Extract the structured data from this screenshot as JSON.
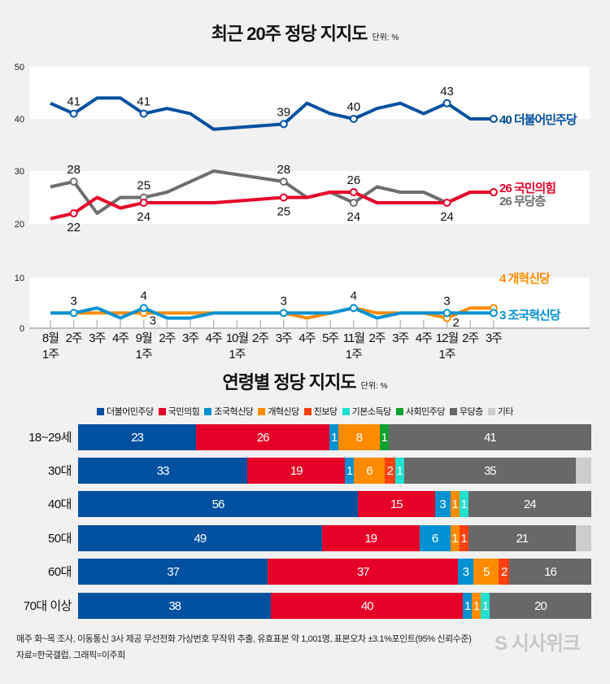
{
  "chart_data": [
    {
      "type": "line",
      "title": "최근 20주 정당 지지도",
      "unit": "단위: %",
      "x_labels": [
        [
          "8월",
          "1주"
        ],
        [
          "2주",
          ""
        ],
        [
          "3주",
          ""
        ],
        [
          "4주",
          ""
        ],
        [
          "9월",
          "1주"
        ],
        [
          "2주",
          ""
        ],
        [
          "3주",
          ""
        ],
        [
          "4주",
          ""
        ],
        [
          "10월",
          "1주"
        ],
        [
          "2주",
          ""
        ],
        [
          "3주",
          ""
        ],
        [
          "4주",
          ""
        ],
        [
          "5주",
          ""
        ],
        [
          "11월",
          "1주"
        ],
        [
          "2주",
          ""
        ],
        [
          "3주",
          ""
        ],
        [
          "4주",
          ""
        ],
        [
          "12월",
          "1주"
        ],
        [
          "2주",
          ""
        ],
        [
          "3주",
          ""
        ]
      ],
      "y_ticks": [
        50,
        40,
        30,
        20,
        10,
        0
      ],
      "grid": false,
      "series": [
        {
          "name": "더불어민주당",
          "color": "#0050a0",
          "panel": "top",
          "end_label": "40 더불어민주당",
          "values": [
            43,
            41,
            44,
            44,
            41,
            42,
            41,
            38,
            null,
            null,
            39,
            43,
            41,
            40,
            42,
            43,
            41,
            43,
            40,
            40
          ],
          "labeled": {
            "1": "41",
            "4": "41",
            "10": "39",
            "13": "40",
            "17": "43"
          },
          "label_pos": "above"
        },
        {
          "name": "국민의힘",
          "color": "#e60028",
          "panel": "mid",
          "end_label": "26 국민의힘",
          "values": [
            21,
            22,
            25,
            23,
            24,
            24,
            24,
            24,
            null,
            null,
            25,
            25,
            26,
            26,
            24,
            24,
            24,
            24,
            26,
            26
          ],
          "labeled": {
            "1": "22",
            "4": "24",
            "10": "25",
            "13": "26",
            "17": "24"
          },
          "label_pos": {
            "1": "below",
            "4": "below",
            "10": "below",
            "13": "above",
            "17": "below"
          }
        },
        {
          "name": "무당층",
          "color": "#6e6e6e",
          "panel": "mid",
          "end_label": "26 무당층",
          "values": [
            27,
            28,
            22,
            25,
            25,
            26,
            28,
            30,
            null,
            null,
            28,
            25,
            26,
            24,
            27,
            26,
            26,
            24,
            26,
            26
          ],
          "labeled": {
            "1": "28",
            "4": "25",
            "10": "28",
            "13": "24"
          },
          "label_pos": {
            "1": "above",
            "4": "above",
            "10": "above",
            "13": "below"
          }
        },
        {
          "name": "개혁신당",
          "color": "#ff8c00",
          "panel": "low",
          "end_label": "4 개혁신당",
          "values": [
            3,
            3,
            3,
            3,
            3,
            3,
            3,
            3,
            null,
            null,
            3,
            2,
            3,
            4,
            3,
            3,
            3,
            2,
            4,
            4
          ],
          "labeled": {
            "4": "3",
            "17": "2"
          },
          "label_pos": "below"
        },
        {
          "name": "조국혁신당",
          "color": "#0091d2",
          "panel": "low",
          "end_label": "3 조국혁신당",
          "values": [
            3,
            3,
            4,
            2,
            4,
            2,
            2,
            3,
            null,
            null,
            3,
            3,
            3,
            4,
            2,
            3,
            3,
            3,
            3,
            3
          ],
          "labeled": {
            "1": "3",
            "4": "4",
            "10": "3",
            "13": "4",
            "17": "3"
          },
          "label_pos": "above"
        }
      ]
    },
    {
      "type": "bar",
      "stacked": true,
      "orientation": "horizontal",
      "title": "연령별 정당 지지도",
      "unit": "단위: %",
      "categories": [
        "18~29세",
        "30대",
        "40대",
        "50대",
        "60대",
        "70대 이상"
      ],
      "legend": "top",
      "series": [
        {
          "name": "더불어민주당",
          "color": "#0050a0",
          "values": [
            23,
            33,
            56,
            49,
            37,
            38
          ]
        },
        {
          "name": "국민의힘",
          "color": "#e60028",
          "values": [
            26,
            19,
            15,
            19,
            37,
            40
          ]
        },
        {
          "name": "조국혁신당",
          "color": "#0091d2",
          "values": [
            1,
            1,
            3,
            6,
            3,
            1
          ]
        },
        {
          "name": "개혁신당",
          "color": "#ff8c00",
          "values": [
            8,
            6,
            1,
            1,
            5,
            1
          ]
        },
        {
          "name": "진보당",
          "color": "#ff4010",
          "values": [
            0,
            2,
            0,
            1,
            2,
            0
          ]
        },
        {
          "name": "기본소득당",
          "color": "#20e0d0",
          "values": [
            0,
            1,
            1,
            0,
            0,
            1
          ]
        },
        {
          "name": "사회민주당",
          "color": "#10a030",
          "values": [
            1,
            0,
            0,
            0,
            0,
            0
          ]
        },
        {
          "name": "무당층",
          "color": "#686868",
          "values": [
            41,
            35,
            24,
            21,
            16,
            20
          ]
        },
        {
          "name": "기타",
          "color": "#cccccc",
          "values": [
            0,
            3,
            0,
            3,
            0,
            0
          ],
          "show_labels": false
        }
      ]
    }
  ],
  "footer": {
    "note": "매주 화~목 조사, 이동통신 3사 제공 무선전화 가상번호 무작위 추출, 유효표본 약 1,001명, 표본오차 ±3.1%포인트(95% 신뢰수준)",
    "source": "자료=한국갤럽, 그래픽=이주희",
    "logo": "시사위크"
  }
}
